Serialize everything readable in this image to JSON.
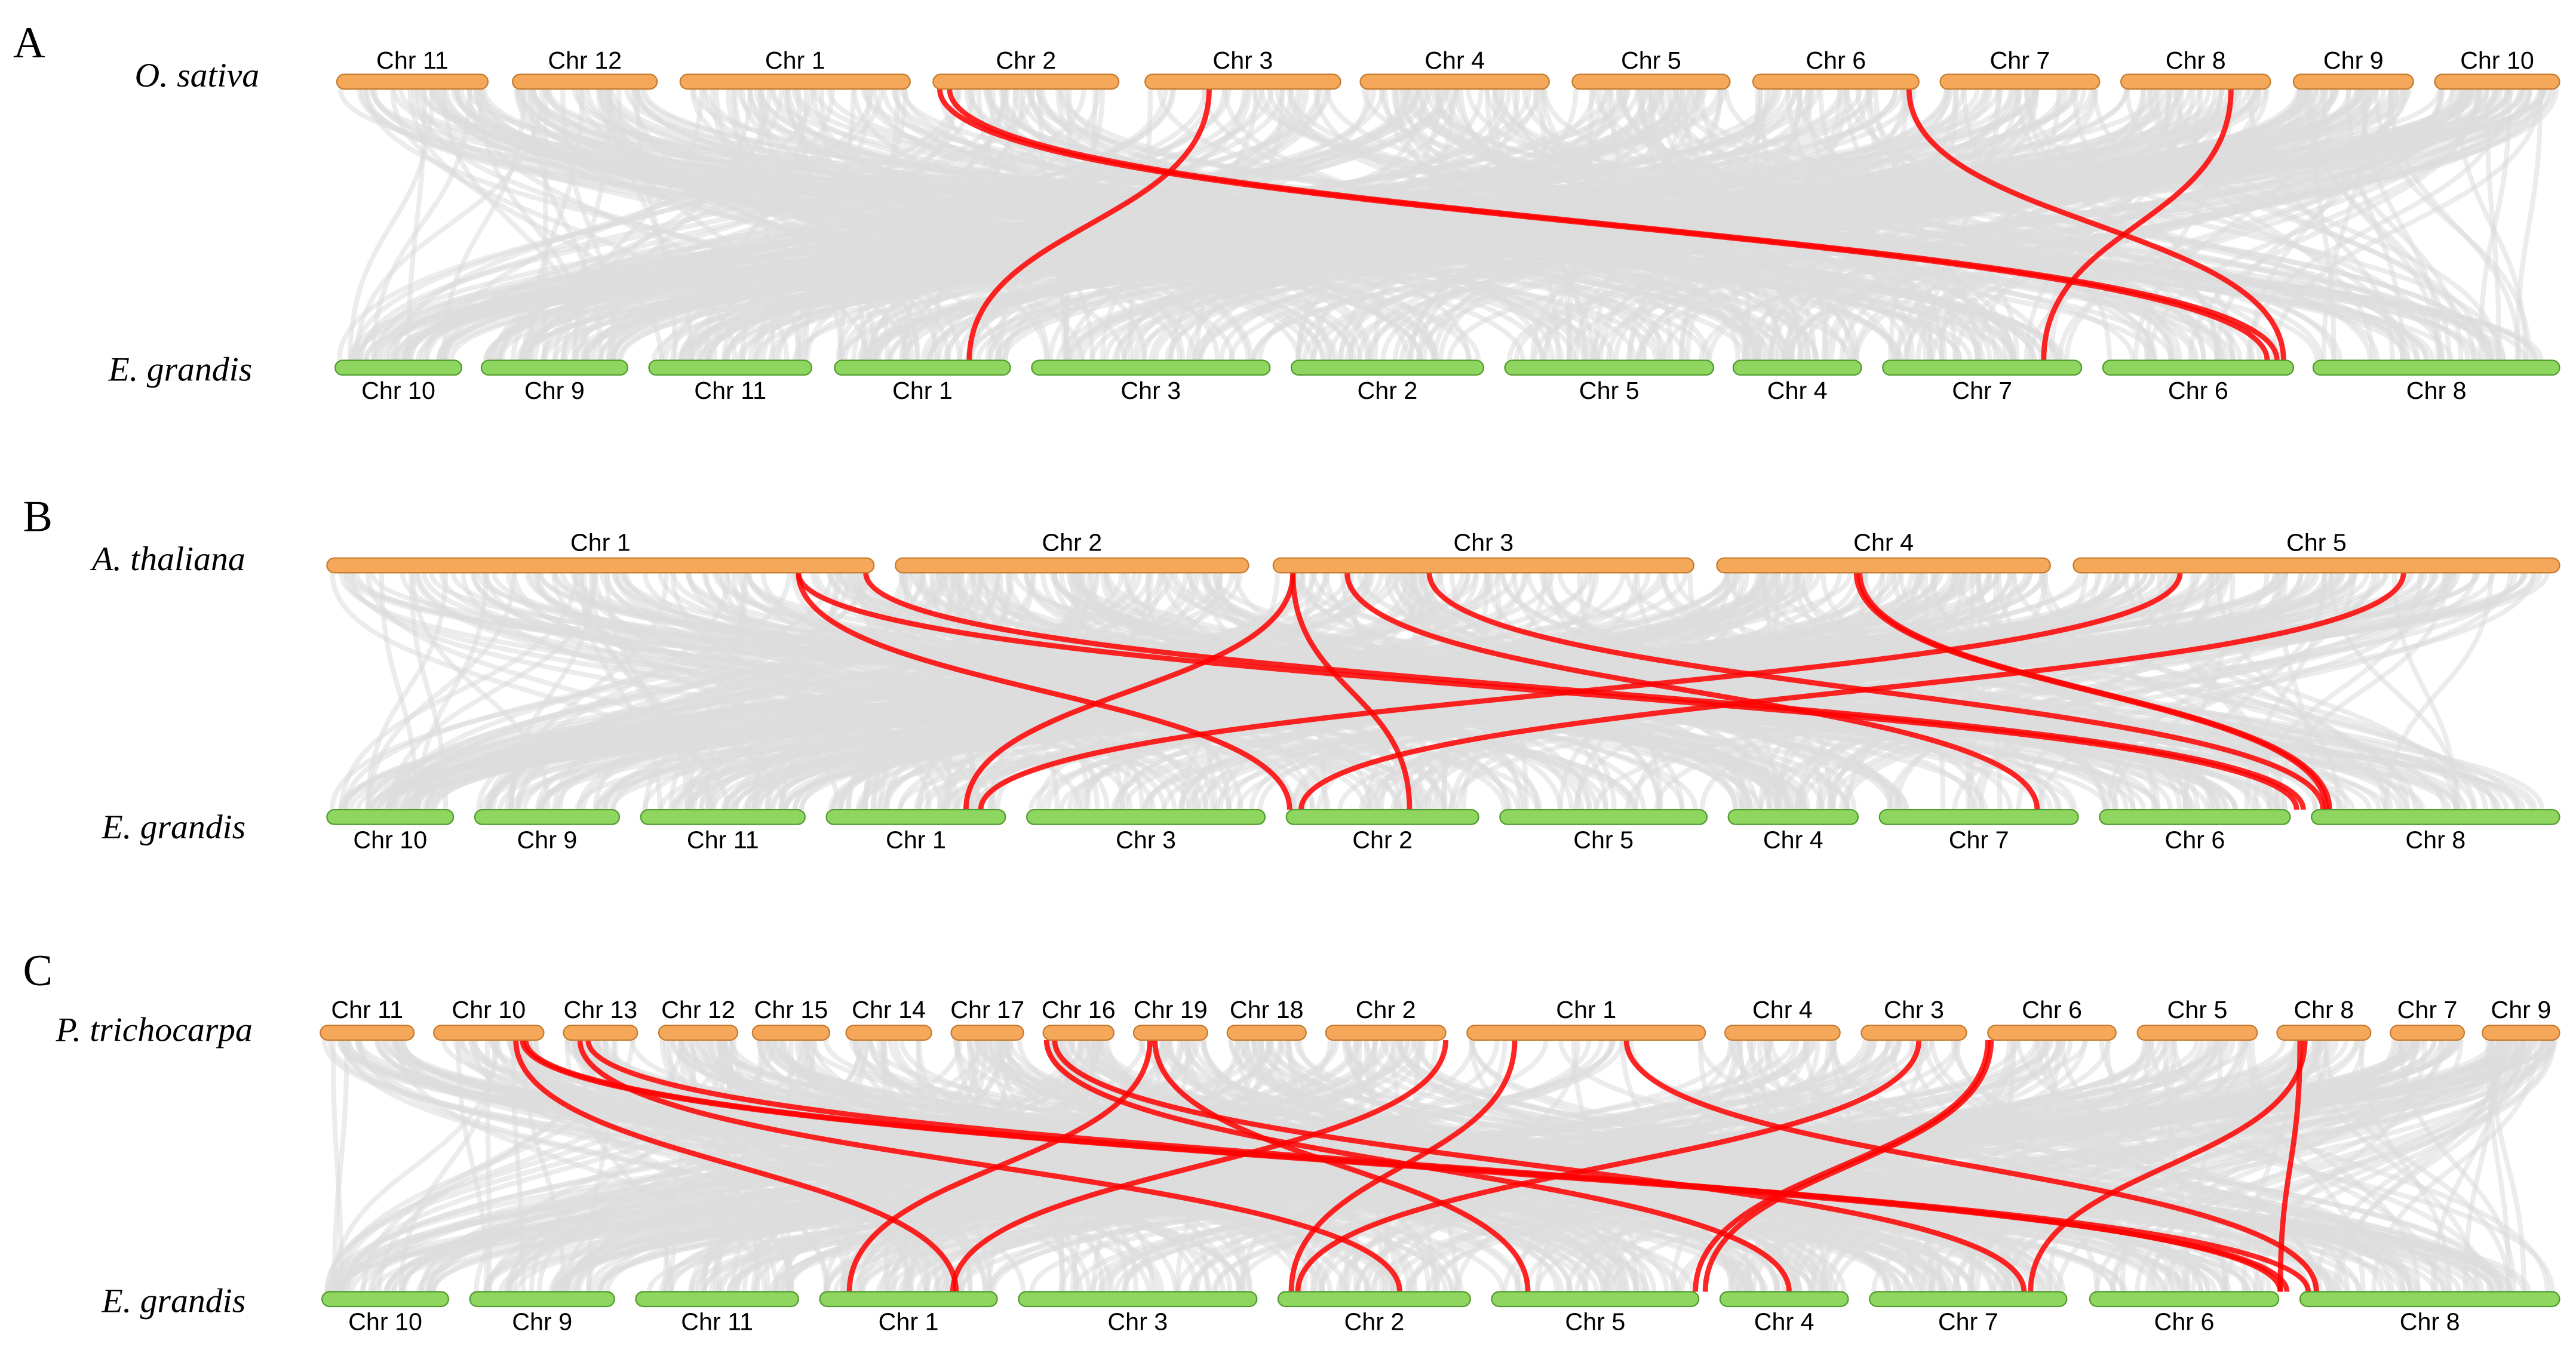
{
  "colors": {
    "top_chromosome_fill": "#f6a85a",
    "top_chromosome_stroke": "#c47a2e",
    "bottom_chromosome_fill": "#8fd660",
    "bottom_chromosome_stroke": "#4f9a2c",
    "background_link": "#dcdcdc",
    "highlight_link": "#ff0000"
  },
  "panels": [
    {
      "letter": "A",
      "top": {
        "species": "O. sativa",
        "chromosomes": [
          {
            "label": "Chr 11",
            "start": 205,
            "end": 297
          },
          {
            "label": "Chr 12",
            "start": 312,
            "end": 400
          },
          {
            "label": "Chr 1",
            "start": 414,
            "end": 554
          },
          {
            "label": "Chr 2",
            "start": 568,
            "end": 681
          },
          {
            "label": "Chr 3",
            "start": 697,
            "end": 816
          },
          {
            "label": "Chr 4",
            "start": 828,
            "end": 943
          },
          {
            "label": "Chr 5",
            "start": 957,
            "end": 1053
          },
          {
            "label": "Chr 6",
            "start": 1067,
            "end": 1168
          },
          {
            "label": "Chr 7",
            "start": 1181,
            "end": 1278
          },
          {
            "label": "Chr 8",
            "start": 1291,
            "end": 1382
          },
          {
            "label": "Chr 9",
            "start": 1396,
            "end": 1469
          },
          {
            "label": "Chr 10",
            "start": 1482,
            "end": 1558
          }
        ]
      },
      "bottom": {
        "species": "E. grandis",
        "chromosomes": [
          {
            "label": "Chr 10",
            "start": 204,
            "end": 281
          },
          {
            "label": "Chr 9",
            "start": 293,
            "end": 382
          },
          {
            "label": "Chr 11",
            "start": 395,
            "end": 494
          },
          {
            "label": "Chr 1",
            "start": 508,
            "end": 615
          },
          {
            "label": "Chr 3",
            "start": 628,
            "end": 773
          },
          {
            "label": "Chr 2",
            "start": 786,
            "end": 903
          },
          {
            "label": "Chr 5",
            "start": 916,
            "end": 1043
          },
          {
            "label": "Chr 4",
            "start": 1055,
            "end": 1133
          },
          {
            "label": "Chr 7",
            "start": 1146,
            "end": 1267
          },
          {
            "label": "Chr 6",
            "start": 1280,
            "end": 1396
          },
          {
            "label": "Chr 8",
            "start": 1408,
            "end": 1558
          }
        ]
      },
      "highlight_links": [
        [
          736,
          590
        ],
        [
          572,
          1380
        ],
        [
          578,
          1386
        ],
        [
          1162,
          1390
        ],
        [
          1358,
          1244
        ]
      ]
    },
    {
      "letter": "B",
      "top": {
        "species": "A. thaliana",
        "chromosomes": [
          {
            "label": "Chr 1",
            "start": 199,
            "end": 532
          },
          {
            "label": "Chr 2",
            "start": 545,
            "end": 760
          },
          {
            "label": "Chr 3",
            "start": 775,
            "end": 1031
          },
          {
            "label": "Chr 4",
            "start": 1045,
            "end": 1248
          },
          {
            "label": "Chr 5",
            "start": 1262,
            "end": 1558
          }
        ]
      },
      "bottom": {
        "species": "E. grandis",
        "chromosomes": [
          {
            "label": "Chr 10",
            "start": 199,
            "end": 276
          },
          {
            "label": "Chr 9",
            "start": 289,
            "end": 377
          },
          {
            "label": "Chr 11",
            "start": 390,
            "end": 490
          },
          {
            "label": "Chr 1",
            "start": 503,
            "end": 612
          },
          {
            "label": "Chr 3",
            "start": 625,
            "end": 770
          },
          {
            "label": "Chr 2",
            "start": 783,
            "end": 900
          },
          {
            "label": "Chr 5",
            "start": 913,
            "end": 1039
          },
          {
            "label": "Chr 4",
            "start": 1052,
            "end": 1131
          },
          {
            "label": "Chr 7",
            "start": 1144,
            "end": 1265
          },
          {
            "label": "Chr 6",
            "start": 1278,
            "end": 1394
          },
          {
            "label": "Chr 8",
            "start": 1407,
            "end": 1558
          }
        ]
      },
      "highlight_links": [
        [
          486,
          785
        ],
        [
          486,
          1398
        ],
        [
          527,
          1402
        ],
        [
          787,
          588
        ],
        [
          787,
          858
        ],
        [
          820,
          1240
        ],
        [
          870,
          1414
        ],
        [
          1130,
          1416
        ],
        [
          1132,
          1418
        ],
        [
          1327,
          597
        ],
        [
          1463,
          792
        ]
      ]
    },
    {
      "letter": "C",
      "top": {
        "species": "P. trichocarpa",
        "chromosomes": [
          {
            "label": "Chr 11",
            "start": 195,
            "end": 252
          },
          {
            "label": "Chr 10",
            "start": 264,
            "end": 331
          },
          {
            "label": "Chr 13",
            "start": 343,
            "end": 388
          },
          {
            "label": "Chr 12",
            "start": 401,
            "end": 449
          },
          {
            "label": "Chr 15",
            "start": 458,
            "end": 505
          },
          {
            "label": "Chr 14",
            "start": 515,
            "end": 567
          },
          {
            "label": "Chr 17",
            "start": 579,
            "end": 623
          },
          {
            "label": "Chr 16",
            "start": 635,
            "end": 678
          },
          {
            "label": "Chr 19",
            "start": 690,
            "end": 735
          },
          {
            "label": "Chr 18",
            "start": 747,
            "end": 795
          },
          {
            "label": "Chr 2",
            "start": 807,
            "end": 880
          },
          {
            "label": "Chr 1",
            "start": 893,
            "end": 1038
          },
          {
            "label": "Chr 4",
            "start": 1050,
            "end": 1120
          },
          {
            "label": "Chr 3",
            "start": 1133,
            "end": 1197
          },
          {
            "label": "Chr 6",
            "start": 1210,
            "end": 1288
          },
          {
            "label": "Chr 5",
            "start": 1301,
            "end": 1374
          },
          {
            "label": "Chr 8",
            "start": 1386,
            "end": 1443
          },
          {
            "label": "Chr 7",
            "start": 1455,
            "end": 1500
          },
          {
            "label": "Chr 9",
            "start": 1511,
            "end": 1558
          }
        ]
      },
      "bottom": {
        "species": "E. grandis",
        "chromosomes": [
          {
            "label": "Chr 10",
            "start": 196,
            "end": 273
          },
          {
            "label": "Chr 9",
            "start": 286,
            "end": 374
          },
          {
            "label": "Chr 11",
            "start": 387,
            "end": 486
          },
          {
            "label": "Chr 1",
            "start": 499,
            "end": 607
          },
          {
            "label": "Chr 3",
            "start": 620,
            "end": 765
          },
          {
            "label": "Chr 2",
            "start": 778,
            "end": 895
          },
          {
            "label": "Chr 5",
            "start": 908,
            "end": 1034
          },
          {
            "label": "Chr 4",
            "start": 1047,
            "end": 1125
          },
          {
            "label": "Chr 7",
            "start": 1138,
            "end": 1258
          },
          {
            "label": "Chr 6",
            "start": 1272,
            "end": 1387
          },
          {
            "label": "Chr 8",
            "start": 1400,
            "end": 1558
          }
        ]
      },
      "highlight_links": [
        [
          314,
          582
        ],
        [
          318,
          1392
        ],
        [
          320,
          1405
        ],
        [
          353,
          852
        ],
        [
          358,
          1388
        ],
        [
          637,
          1089
        ],
        [
          642,
          1232
        ],
        [
          700,
          517
        ],
        [
          703,
          930
        ],
        [
          880,
          580
        ],
        [
          922,
          786
        ],
        [
          990,
          1410
        ],
        [
          1168,
          790
        ],
        [
          1210,
          1032
        ],
        [
          1212,
          1038
        ],
        [
          1403,
          1236
        ],
        [
          1400,
          1388
        ]
      ]
    }
  ]
}
